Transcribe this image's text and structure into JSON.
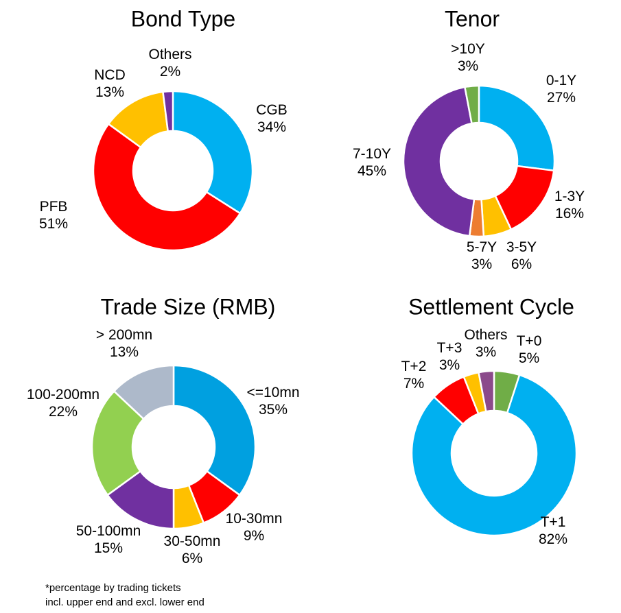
{
  "chart_data": [
    {
      "type": "pie",
      "title": "Bond Type",
      "series": [
        {
          "label": "CGB",
          "value": 34,
          "pct": "34%",
          "color": "#00B0F0"
        },
        {
          "label": "PFB",
          "value": 51,
          "pct": "51%",
          "color": "#FF0000"
        },
        {
          "label": "NCD",
          "value": 13,
          "pct": "13%",
          "color": "#FFC000"
        },
        {
          "label": "Others",
          "value": 2,
          "pct": "2%",
          "color": "#7030A0"
        }
      ]
    },
    {
      "type": "pie",
      "title": "Tenor",
      "series": [
        {
          "label": "0-1Y",
          "value": 27,
          "pct": "27%",
          "color": "#00B0F0"
        },
        {
          "label": "1-3Y",
          "value": 16,
          "pct": "16%",
          "color": "#FF0000"
        },
        {
          "label": "3-5Y",
          "value": 6,
          "pct": "6%",
          "color": "#FFC000"
        },
        {
          "label": "5-7Y",
          "value": 3,
          "pct": "3%",
          "color": "#ED7D31"
        },
        {
          "label": "7-10Y",
          "value": 45,
          "pct": "45%",
          "color": "#7030A0"
        },
        {
          "label": ">10Y",
          "value": 3,
          "pct": "3%",
          "color": "#70AD47"
        }
      ]
    },
    {
      "type": "pie",
      "title": "Trade Size (RMB)",
      "series": [
        {
          "label": "<=10mn",
          "value": 35,
          "pct": "35%",
          "color": "#00A0E0"
        },
        {
          "label": "10-30mn",
          "value": 9,
          "pct": "9%",
          "color": "#FF0000"
        },
        {
          "label": "30-50mn",
          "value": 6,
          "pct": "6%",
          "color": "#FFC000"
        },
        {
          "label": "50-100mn",
          "value": 15,
          "pct": "15%",
          "color": "#7030A0"
        },
        {
          "label": "100-200mn",
          "value": 22,
          "pct": "22%",
          "color": "#92D050"
        },
        {
          "label": "> 200mn",
          "value": 13,
          "pct": "13%",
          "color": "#ADB9CA"
        }
      ]
    },
    {
      "type": "pie",
      "title": "Settlement Cycle",
      "series": [
        {
          "label": "T+0",
          "value": 5,
          "pct": "5%",
          "color": "#70AD47"
        },
        {
          "label": "T+1",
          "value": 82,
          "pct": "82%",
          "color": "#00B0F0"
        },
        {
          "label": "T+2",
          "value": 7,
          "pct": "7%",
          "color": "#FF0000"
        },
        {
          "label": "T+3",
          "value": 3,
          "pct": "3%",
          "color": "#FFC000"
        },
        {
          "label": "Others",
          "value": 3,
          "pct": "3%",
          "color": "#8B4A8B"
        }
      ]
    }
  ],
  "footnote": {
    "line1": "*percentage by trading tickets",
    "line2": "incl. upper end and excl. lower end"
  }
}
